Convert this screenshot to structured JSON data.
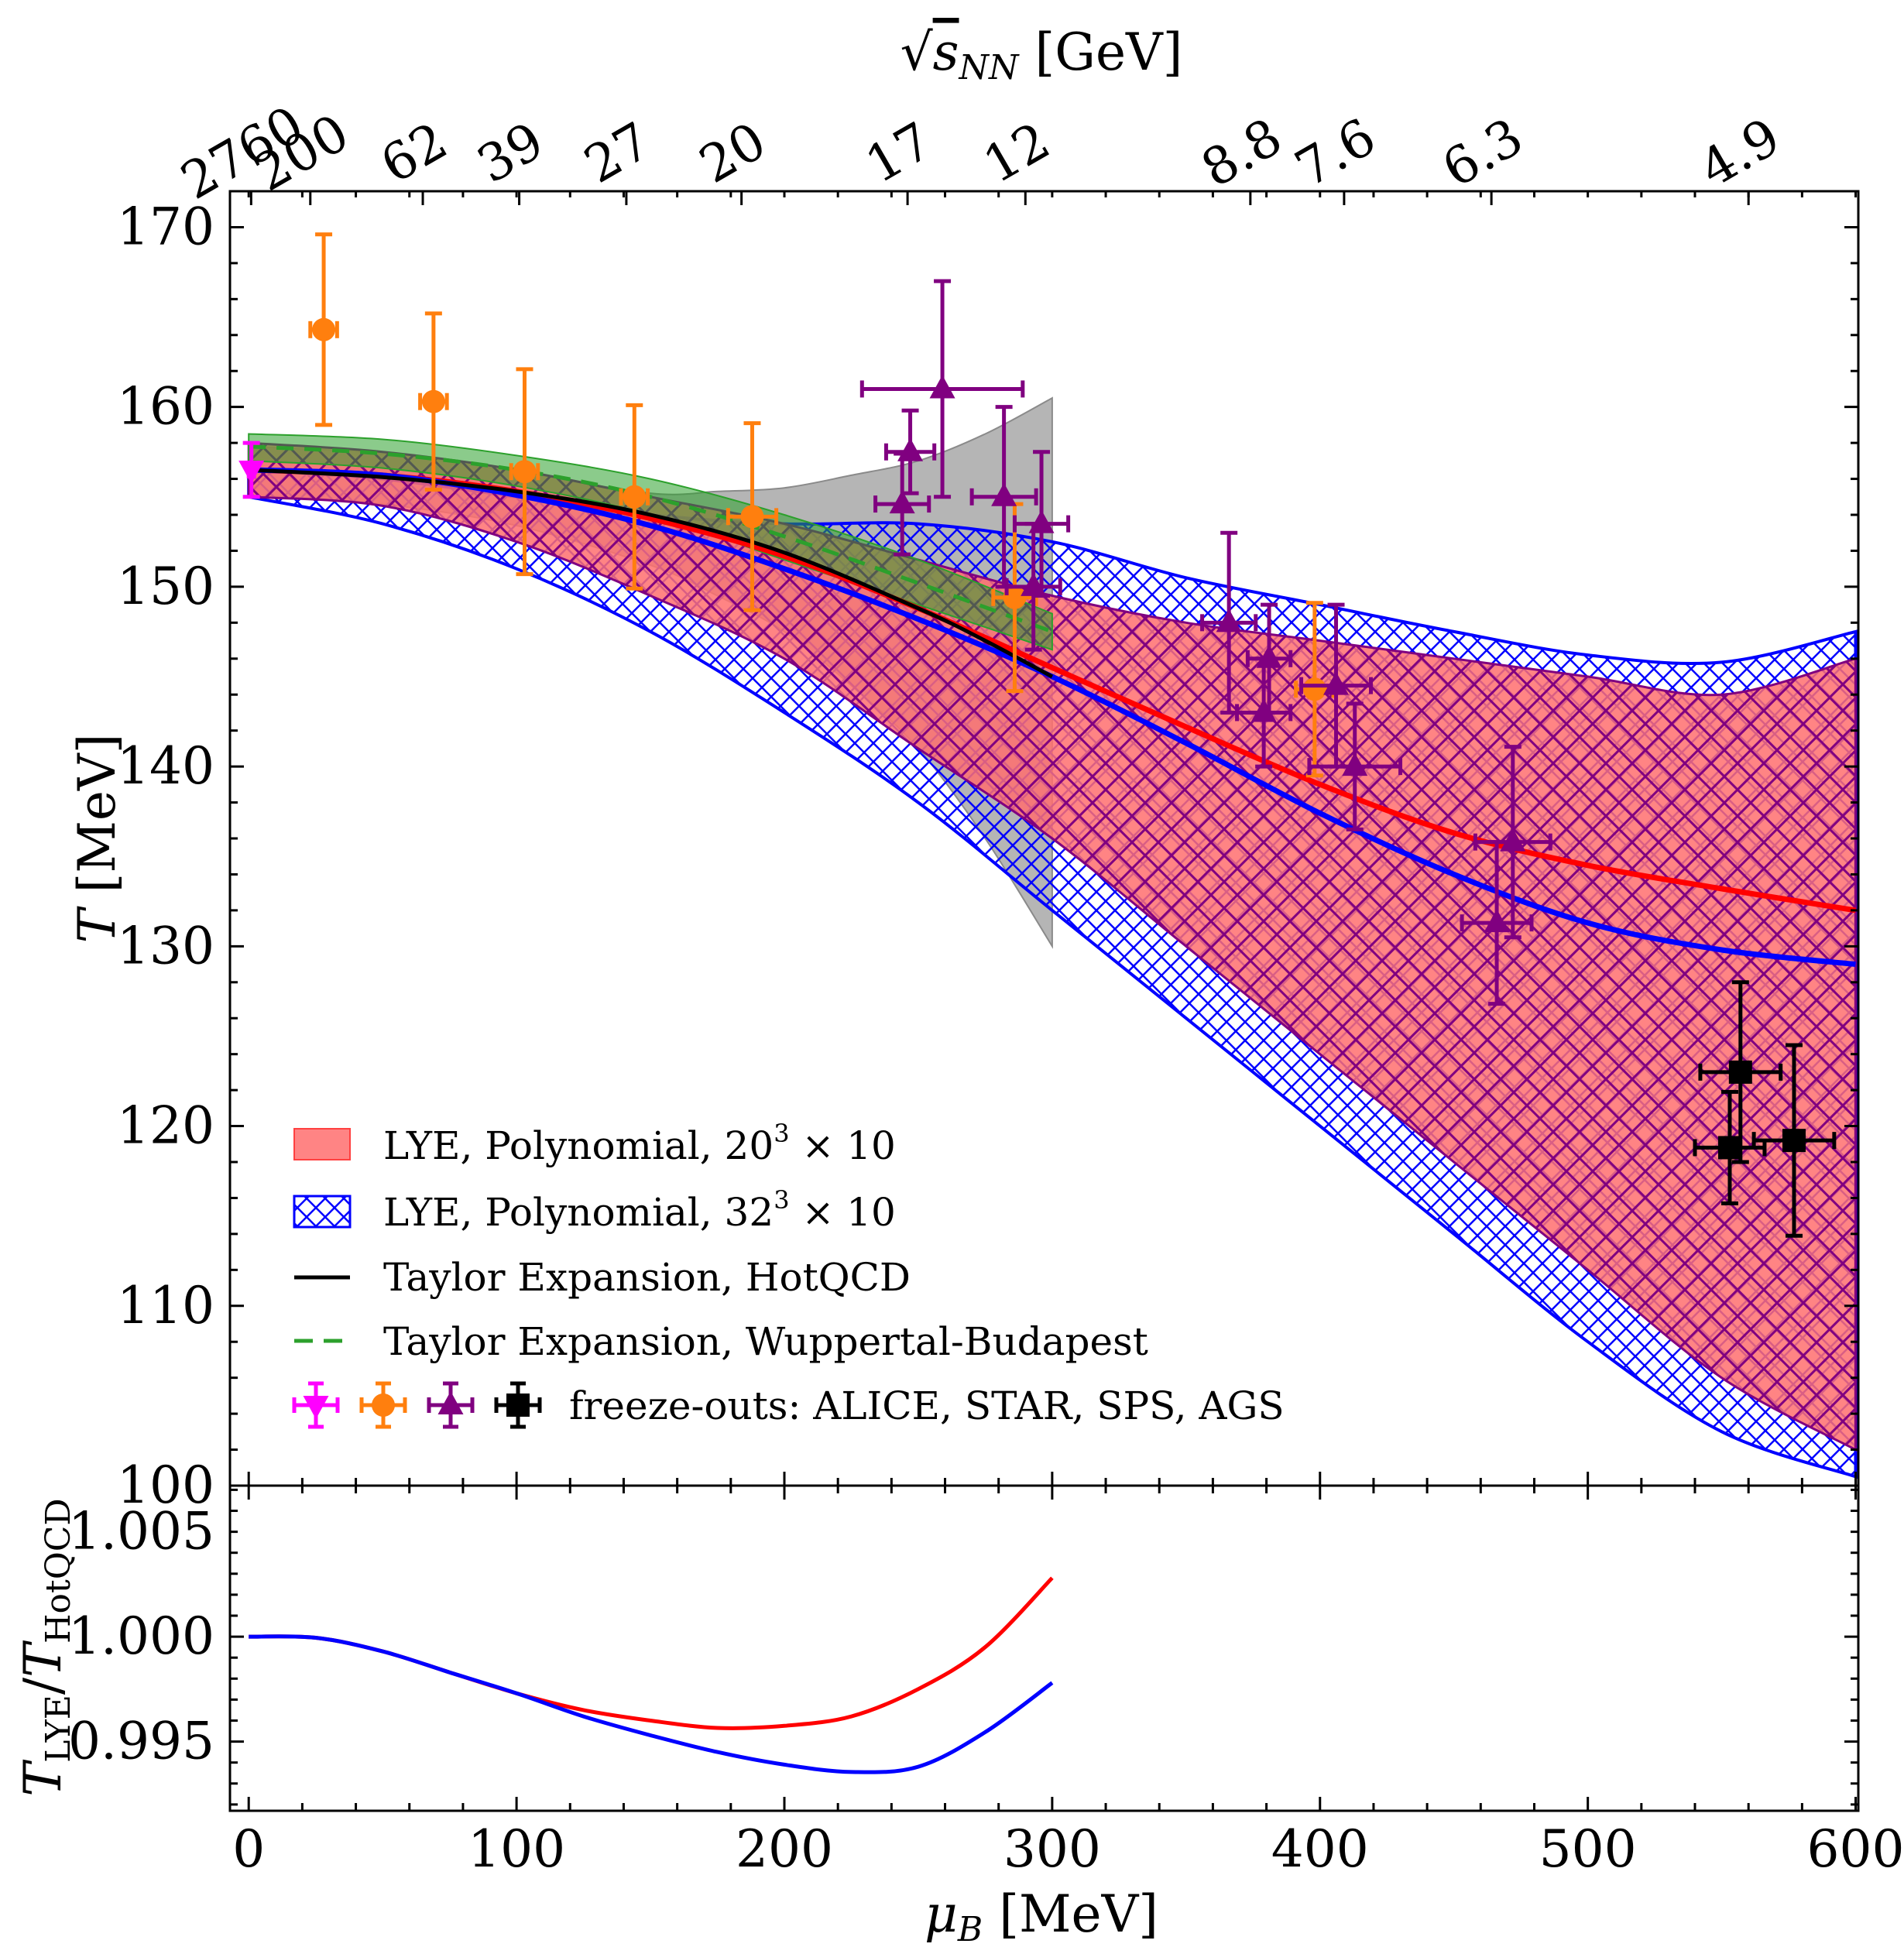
{
  "chart_data": [
    {
      "panel": "main",
      "type": "line",
      "xlabel_var": "μ",
      "xlabel_sub": "B",
      "xlabel_unit": "[MeV]",
      "ylabel_var": "T",
      "ylabel_unit": "[MeV]",
      "top_axis_label": "√s_NN [GeV]",
      "top_axis_sqrt": "√",
      "top_axis_var": "s",
      "top_axis_sub": "NN",
      "top_axis_unit": "[GeV]",
      "xlim": [
        -7,
        601
      ],
      "ylim": [
        100,
        172
      ],
      "x_ticks": [
        "0",
        "100",
        "200",
        "300",
        "400",
        "500",
        "600"
      ],
      "y_ticks": [
        "100",
        "110",
        "120",
        "130",
        "140",
        "150",
        "160",
        "170"
      ],
      "top_ticks": [
        {
          "label": "2760",
          "mu": 0.9
        },
        {
          "label": "200",
          "mu": 23
        },
        {
          "label": "62",
          "mu": 65
        },
        {
          "label": "39",
          "mu": 101
        },
        {
          "label": "27",
          "mu": 141
        },
        {
          "label": "20",
          "mu": 184
        },
        {
          "label": "17",
          "mu": 246
        },
        {
          "label": "12",
          "mu": 290
        },
        {
          "label": "8.8",
          "mu": 374
        },
        {
          "label": "7.6",
          "mu": 409
        },
        {
          "label": "6.3",
          "mu": 464
        },
        {
          "label": "4.9",
          "mu": 560
        }
      ],
      "legend": {
        "position": "lower-left",
        "lye20": "LYE, Polynomial, 20",
        "lye32": "LYE, Polynomial, 32",
        "exp": "3",
        "times10": " × 10",
        "hotqcd": "Taylor Expansion, HotQCD",
        "wb": "Taylor Expansion, Wuppertal-Budapest",
        "freeze": "freeze-outs: ALICE, STAR, SPS, AGS"
      },
      "colors": {
        "red": "#ff0000",
        "red_fill": "#ff6e6e",
        "blue": "#0000ff",
        "hatch": "#800080",
        "green": "#2ca02c",
        "gray": "#a8a8a8",
        "alice": "#ff00ff",
        "star": "#ff7f0e",
        "sps": "#800080",
        "ags": "#000000"
      },
      "bands": {
        "lye20": {
          "x": [
            0,
            50,
            100,
            150,
            200,
            250,
            300,
            350,
            400,
            450,
            500,
            550,
            600
          ],
          "upper": [
            158,
            157.5,
            156.5,
            155,
            153.5,
            151.5,
            149.5,
            148,
            147,
            146,
            145,
            144,
            146
          ],
          "lower": [
            155,
            154.5,
            152.5,
            149.5,
            146,
            141,
            136,
            130,
            124,
            118,
            112,
            106,
            102
          ]
        },
        "lye32": {
          "x": [
            0,
            50,
            100,
            150,
            200,
            250,
            300,
            350,
            400,
            450,
            500,
            550,
            600
          ],
          "upper": [
            156.5,
            156,
            155,
            154,
            153.5,
            153.5,
            152.5,
            150.5,
            149,
            147.5,
            146.2,
            145.8,
            147.5
          ],
          "lower": [
            155,
            153.5,
            151,
            147.5,
            143,
            138,
            132,
            126,
            120,
            114,
            108,
            103,
            100.5
          ]
        },
        "wb": {
          "x": [
            0,
            50,
            100,
            150,
            200,
            250,
            300
          ],
          "upper": [
            158.5,
            158.2,
            157.3,
            156,
            154,
            151.5,
            148.5
          ],
          "lower": [
            157,
            156.6,
            155.6,
            154,
            151.5,
            149,
            146.5
          ]
        },
        "hotqcd": {
          "x": [
            0,
            50,
            100,
            150,
            175,
            200,
            225,
            250,
            275,
            300
          ],
          "upper": [
            157.8,
            157.4,
            156.4,
            155.2,
            155.3,
            155.5,
            156.2,
            157,
            158.5,
            160.5
          ],
          "lower": [
            155.1,
            154.6,
            153.4,
            151.2,
            149.5,
            147.5,
            144.5,
            141,
            136,
            130
          ]
        }
      },
      "series": [
        {
          "name": "LYE 20^3 x 10 central",
          "x": [
            0,
            50,
            100,
            150,
            200,
            250,
            300,
            350,
            400,
            450,
            500,
            550,
            600
          ],
          "values": [
            156.5,
            156.2,
            155.3,
            153.8,
            151.7,
            148.8,
            145.5,
            142.2,
            139,
            136.3,
            134.5,
            133.2,
            132
          ]
        },
        {
          "name": "LYE 32^3 x 10 central",
          "x": [
            0,
            50,
            100,
            150,
            200,
            250,
            300,
            350,
            400,
            450,
            500,
            550,
            600
          ],
          "values": [
            156.5,
            156.2,
            155.1,
            153.4,
            151,
            148.2,
            145,
            141.3,
            137.4,
            134,
            131.3,
            129.8,
            129
          ]
        },
        {
          "name": "Taylor HotQCD",
          "x": [
            0,
            50,
            100,
            150,
            200,
            250,
            275,
            300
          ],
          "values": [
            156.5,
            156.1,
            155.3,
            154,
            151.9,
            148.8,
            147,
            145
          ]
        },
        {
          "name": "Taylor WB",
          "x": [
            0,
            50,
            100,
            150,
            200,
            250,
            300
          ],
          "values": [
            157.8,
            157.4,
            156.5,
            155,
            152.8,
            150.2,
            147.5
          ]
        }
      ],
      "points": [
        {
          "group": "ALICE",
          "marker": "tri-down",
          "x": 1,
          "y": 156.5,
          "xerr": 1,
          "yerr": 1.5
        },
        {
          "group": "STAR",
          "marker": "circle",
          "x": 28,
          "y": 164.3,
          "xerr": 5,
          "yerr": 5.3
        },
        {
          "group": "STAR",
          "marker": "circle",
          "x": 69,
          "y": 160.3,
          "xerr": 5,
          "yerr": 4.9
        },
        {
          "group": "STAR",
          "marker": "circle",
          "x": 103,
          "y": 156.4,
          "xerr": 5,
          "yerr": 5.7
        },
        {
          "group": "STAR",
          "marker": "circle",
          "x": 144,
          "y": 155,
          "xerr": 5,
          "yerr": 5.1
        },
        {
          "group": "STAR",
          "marker": "circle",
          "x": 188,
          "y": 153.9,
          "xerr": 9,
          "yerr": 5.2
        },
        {
          "group": "STAR",
          "marker": "circle",
          "x": 286,
          "y": 149.4,
          "xerr": 8,
          "yerr": 5.2
        },
        {
          "group": "STAR",
          "marker": "circle",
          "x": 398,
          "y": 144.3,
          "xerr": 7,
          "yerr": 4.8
        },
        {
          "group": "SPS",
          "marker": "triangle",
          "x": 247,
          "y": 157.5,
          "xerr": 9,
          "yerr": 2.3
        },
        {
          "group": "SPS",
          "marker": "triangle",
          "x": 259,
          "y": 161,
          "xerr": 30,
          "yerr": 6
        },
        {
          "group": "SPS",
          "marker": "triangle",
          "x": 244,
          "y": 154.6,
          "xerr": 10,
          "yerr": 2.8
        },
        {
          "group": "SPS",
          "marker": "triangle",
          "x": 282,
          "y": 155,
          "xerr": 12,
          "yerr": 5
        },
        {
          "group": "SPS",
          "marker": "triangle",
          "x": 296,
          "y": 153.5,
          "xerr": 10,
          "yerr": 4
        },
        {
          "group": "SPS",
          "marker": "triangle",
          "x": 293,
          "y": 150,
          "xerr": 10,
          "yerr": 3.5
        },
        {
          "group": "SPS",
          "marker": "triangle",
          "x": 366,
          "y": 148,
          "xerr": 10,
          "yerr": 5
        },
        {
          "group": "SPS",
          "marker": "triangle",
          "x": 381,
          "y": 146,
          "xerr": 8,
          "yerr": 3
        },
        {
          "group": "SPS",
          "marker": "triangle",
          "x": 379,
          "y": 143,
          "xerr": 10,
          "yerr": 3
        },
        {
          "group": "SPS",
          "marker": "triangle",
          "x": 406,
          "y": 144.5,
          "xerr": 13,
          "yerr": 4.5
        },
        {
          "group": "SPS",
          "marker": "triangle",
          "x": 413,
          "y": 140,
          "xerr": 17,
          "yerr": 3.5
        },
        {
          "group": "SPS",
          "marker": "triangle",
          "x": 472,
          "y": 135.8,
          "xerr": 14,
          "yerr": 5.3
        },
        {
          "group": "SPS",
          "marker": "triangle",
          "x": 466,
          "y": 131.3,
          "xerr": 13,
          "yerr": 4.5
        },
        {
          "group": "AGS",
          "marker": "square",
          "x": 557,
          "y": 123,
          "xerr": 15,
          "yerr": 5
        },
        {
          "group": "AGS",
          "marker": "square",
          "x": 553,
          "y": 118.8,
          "xerr": 13,
          "yerr": 3.1
        },
        {
          "group": "AGS",
          "marker": "square",
          "x": 577,
          "y": 119.2,
          "xerr": 15,
          "yerr": 5.3
        }
      ]
    },
    {
      "panel": "ratio",
      "type": "line",
      "ylabel": "T_LYE / T_HotQCD",
      "ylabel_t": "T",
      "ylabel_sub1": "LYE",
      "ylabel_slash": "/",
      "ylabel_sub2": "HotQCD",
      "xlim": [
        -7,
        601
      ],
      "ylim": [
        0.9917,
        1.0072
      ],
      "y_ticks": [
        "0.995",
        "1.000",
        "1.005"
      ],
      "series": [
        {
          "name": "20^3 x 10",
          "color": "#ff0000",
          "x": [
            0,
            25,
            50,
            75,
            100,
            125,
            150,
            175,
            200,
            225,
            250,
            275,
            300
          ],
          "values": [
            1.0,
            0.99995,
            0.9993,
            0.9983,
            0.9973,
            0.9965,
            0.996,
            0.99565,
            0.99575,
            0.9962,
            0.9975,
            0.9995,
            1.0028
          ]
        },
        {
          "name": "32^3 x 10",
          "color": "#0000ff",
          "x": [
            0,
            25,
            50,
            75,
            100,
            125,
            150,
            175,
            200,
            225,
            250,
            275,
            300
          ],
          "values": [
            1.0,
            0.99995,
            0.9993,
            0.9983,
            0.9973,
            0.9962,
            0.9953,
            0.9945,
            0.9939,
            0.99355,
            0.9938,
            0.99545,
            0.9978
          ]
        }
      ]
    }
  ]
}
